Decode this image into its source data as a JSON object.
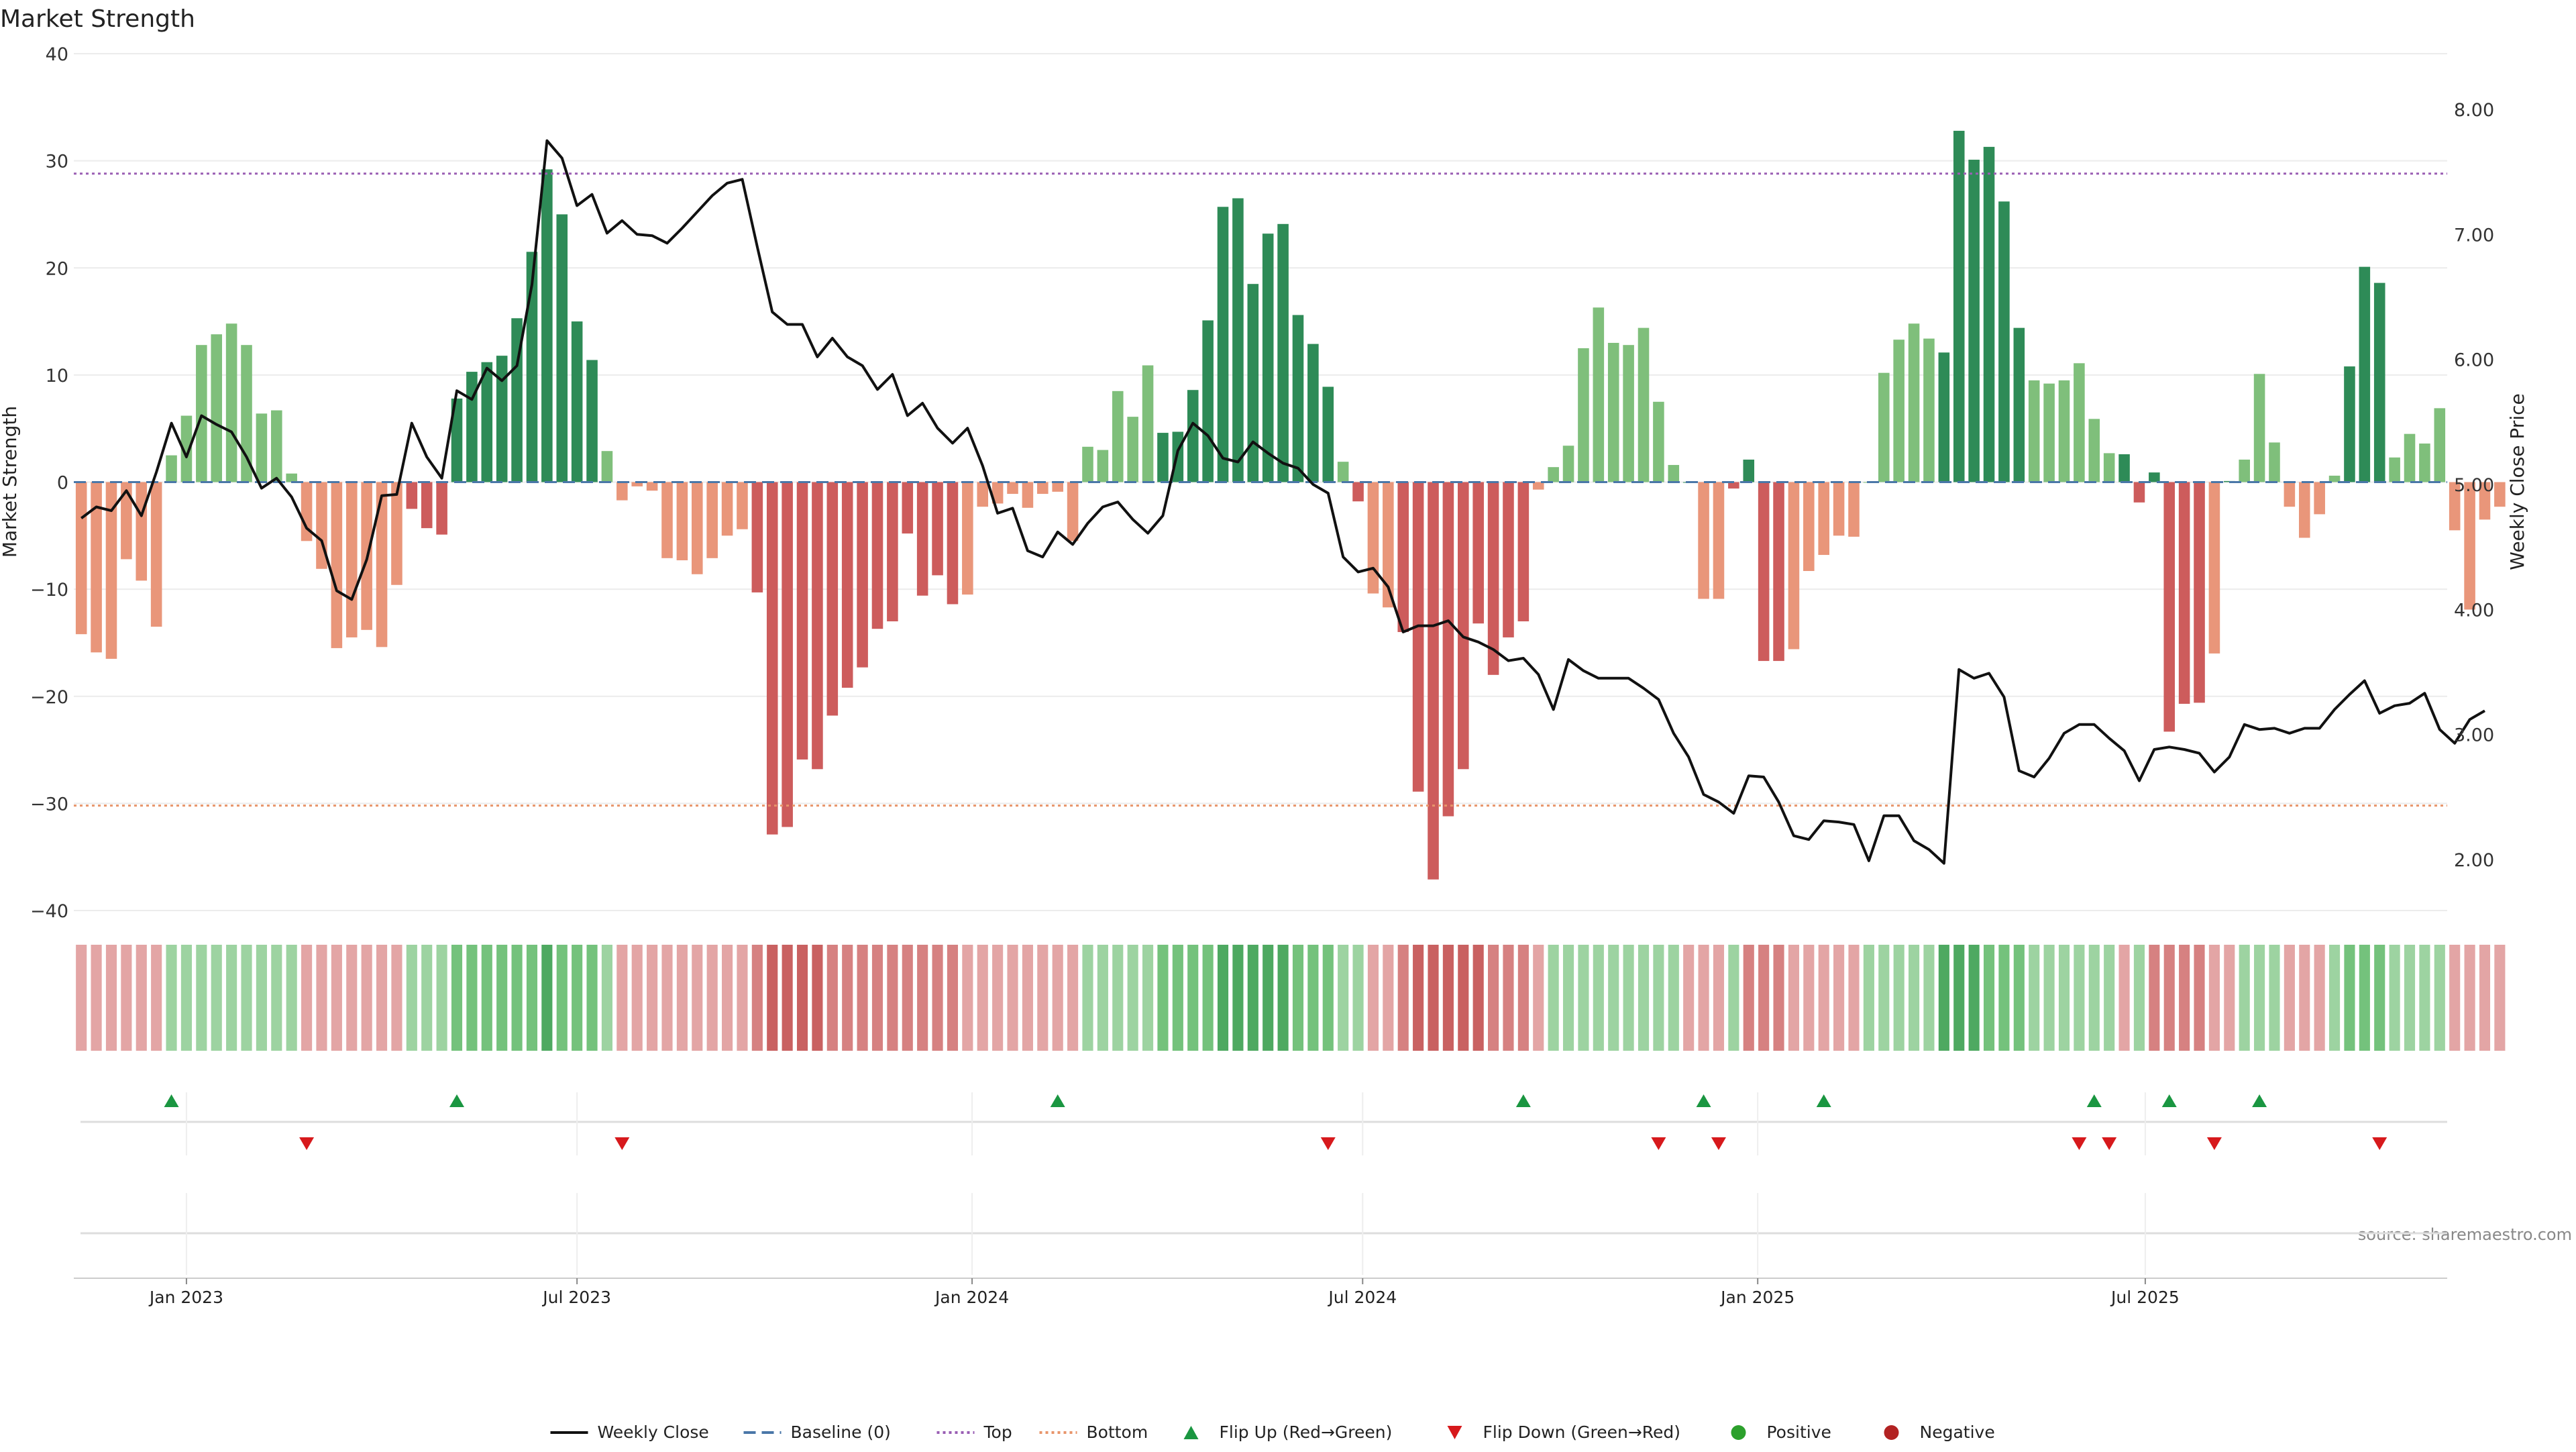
{
  "chart_data": {
    "type": "bar",
    "title": "Market Strength",
    "ylabel_left": "Market Strength",
    "ylabel_right": "Weekly Close Price",
    "ylim_left": [
      -40,
      40
    ],
    "ylim_right": [
      1.5,
      8.3
    ],
    "yticks_left": [
      "40",
      "30",
      "20",
      "10",
      "0",
      "−10",
      "−20",
      "−30",
      "−40"
    ],
    "yticks_left_values": [
      40,
      30,
      20,
      10,
      0,
      -10,
      -20,
      -30,
      -40
    ],
    "yticks_right": [
      "8.00",
      "7.00",
      "6.00",
      "5.00",
      "4.00",
      "3.00",
      "2.00"
    ],
    "yticks_right_values": [
      8,
      7,
      6,
      5,
      4,
      3,
      2
    ],
    "x_ticks": [
      {
        "label": "Jan 2023",
        "week": 7.0
      },
      {
        "label": "Jul 2023",
        "week": 33.0
      },
      {
        "label": "Jan 2024",
        "week": 59.3
      },
      {
        "label": "Jul 2024",
        "week": 85.3
      },
      {
        "label": "Jan 2025",
        "week": 111.6
      },
      {
        "label": "Jul 2025",
        "week": 137.4
      }
    ],
    "x_range": [
      -0.5,
      157.5
    ],
    "top_level": 28.8,
    "bottom_level": -30.2,
    "strength_values": [
      -14.2,
      -15.9,
      -16.5,
      -7.2,
      -9.2,
      -13.5,
      2.5,
      6.2,
      12.8,
      13.8,
      14.8,
      12.8,
      6.4,
      6.7,
      0.8,
      -5.5,
      -8.1,
      -15.5,
      -14.5,
      -13.8,
      -15.4,
      -9.6,
      -2.5,
      -4.3,
      -4.9,
      7.8,
      10.3,
      11.2,
      11.8,
      15.3,
      21.5,
      29.2,
      25.0,
      15.0,
      11.4,
      2.9,
      -1.7,
      -0.4,
      -0.8,
      -7.1,
      -7.3,
      -8.6,
      -7.1,
      -5.0,
      -4.4,
      -10.3,
      -32.9,
      -32.2,
      -25.9,
      -26.8,
      -21.8,
      -19.2,
      -17.3,
      -13.7,
      -13.0,
      -4.8,
      -10.6,
      -8.7,
      -11.4,
      -10.5,
      -2.3,
      -2.0,
      -1.1,
      -2.4,
      -1.1,
      -0.9,
      -5.5,
      3.3,
      3.0,
      8.5,
      6.1,
      10.9,
      4.6,
      4.7,
      8.6,
      15.1,
      25.7,
      26.5,
      18.5,
      23.2,
      24.1,
      15.6,
      12.9,
      8.9,
      1.9,
      -1.8,
      -10.4,
      -11.7,
      -14.0,
      -28.9,
      -37.1,
      -31.2,
      -26.8,
      -13.2,
      -18.0,
      -14.5,
      -13.0,
      -0.7,
      1.4,
      3.4,
      12.5,
      16.3,
      13.0,
      12.8,
      14.4,
      7.5,
      1.6,
      0.0,
      -10.9,
      -10.9,
      -0.6,
      2.1,
      -16.7,
      -16.7,
      -15.6,
      -8.3,
      -6.8,
      -5.0,
      -5.1,
      0.0,
      10.2,
      13.3,
      14.8,
      13.4,
      12.1,
      32.8,
      30.1,
      31.3,
      26.2,
      14.4,
      9.5,
      9.2,
      9.5,
      11.1,
      5.9,
      2.7,
      2.6,
      -1.9,
      0.9,
      -23.3,
      -20.7,
      -20.6,
      -16.0,
      0.1,
      2.1,
      10.1,
      3.7,
      -2.3,
      -5.2,
      -3.0,
      0.6,
      10.8,
      20.1,
      18.6,
      2.3,
      4.5,
      3.6,
      6.9,
      -4.5,
      -11.9,
      -3.5,
      -2.3
    ],
    "shade_levels": [
      -1,
      -1,
      -1,
      -1,
      -1,
      -1,
      1,
      1,
      1,
      1,
      1,
      1,
      1,
      1,
      1,
      -1,
      -1,
      -1,
      -1,
      -1,
      -1,
      -1,
      1,
      1,
      1,
      2,
      2,
      2,
      2,
      2,
      2,
      3,
      2,
      2,
      2,
      1,
      -1,
      -1,
      -1,
      -1,
      -1,
      -1,
      -1,
      -1,
      -1,
      -2,
      -3,
      -3,
      -3,
      -3,
      -2,
      -2,
      -2,
      -2,
      -2,
      -2,
      -2,
      -2,
      -2,
      -1,
      -1,
      -1,
      -1,
      -1,
      -1,
      -1,
      -1,
      1,
      1,
      1,
      1,
      1,
      2,
      2,
      2,
      2,
      3,
      3,
      3,
      3,
      3,
      2,
      2,
      2,
      1,
      1,
      -1,
      -1,
      -2,
      -3,
      -3,
      -3,
      -3,
      -3,
      -2,
      -2,
      -2,
      -1,
      1,
      1,
      1,
      1,
      1,
      1,
      1,
      1,
      1,
      -1,
      -1,
      -1,
      1,
      -2,
      -2,
      -2,
      -1,
      -1,
      -1,
      -1,
      -1,
      1,
      1,
      1,
      1,
      1,
      3,
      3,
      3,
      2,
      2,
      2,
      1,
      1,
      1,
      1,
      1,
      1,
      -1,
      1,
      -2,
      -2,
      -2,
      -2,
      -1,
      -1,
      1,
      1,
      1,
      -1,
      -1,
      -1,
      1,
      2,
      2,
      2,
      1,
      1,
      1,
      1,
      -1,
      -1,
      -1,
      -1
    ],
    "close_values": [
      4.73,
      4.82,
      4.79,
      4.95,
      4.75,
      5.1,
      5.49,
      5.22,
      5.55,
      5.48,
      5.42,
      5.22,
      4.97,
      5.05,
      4.9,
      4.65,
      4.55,
      4.15,
      4.08,
      4.4,
      4.91,
      4.92,
      5.49,
      5.22,
      5.05,
      5.75,
      5.68,
      5.93,
      5.83,
      5.95,
      6.6,
      7.75,
      7.61,
      7.23,
      7.32,
      7.01,
      7.11,
      7.0,
      6.99,
      6.93,
      7.05,
      7.18,
      7.31,
      7.41,
      7.44,
      6.9,
      6.38,
      6.28,
      6.28,
      6.02,
      6.17,
      6.02,
      5.95,
      5.76,
      5.88,
      5.55,
      5.65,
      5.45,
      5.33,
      5.45,
      5.15,
      4.77,
      4.81,
      4.47,
      4.42,
      4.62,
      4.52,
      4.69,
      4.82,
      4.86,
      4.72,
      4.61,
      4.75,
      5.27,
      5.49,
      5.39,
      5.21,
      5.18,
      5.34,
      5.25,
      5.17,
      5.13,
      5.0,
      4.93,
      4.42,
      4.3,
      4.33,
      4.18,
      3.82,
      3.87,
      3.87,
      3.91,
      3.78,
      3.74,
      3.68,
      3.59,
      3.61,
      3.48,
      3.2,
      3.6,
      3.51,
      3.45,
      3.45,
      3.45,
      3.37,
      3.28,
      3.01,
      2.82,
      2.52,
      2.46,
      2.37,
      2.67,
      2.66,
      2.46,
      2.19,
      2.16,
      2.31,
      2.3,
      2.28,
      1.99,
      2.35,
      2.35,
      2.15,
      2.08,
      1.97,
      3.52,
      3.45,
      3.49,
      3.3,
      2.71,
      2.66,
      2.81,
      3.01,
      3.08,
      3.08,
      2.97,
      2.87,
      2.63,
      2.88,
      2.9,
      2.88,
      2.85,
      2.7,
      2.82,
      3.08,
      3.04,
      3.05,
      3.01,
      3.05,
      3.05,
      3.2,
      3.32,
      3.43,
      3.17,
      3.23,
      3.25,
      3.33,
      3.04,
      2.93,
      3.12,
      3.19
    ],
    "flip_up_weeks": [
      6,
      25,
      65,
      96,
      108,
      116,
      134,
      139,
      145
    ],
    "flip_down_weeks": [
      15,
      36,
      83,
      105,
      109,
      133,
      135,
      142,
      153
    ],
    "legend": [
      {
        "label": "Weekly Close",
        "symbol": "line",
        "color": "#111111"
      },
      {
        "label": "Baseline (0)",
        "symbol": "dashed",
        "color": "#4a77a8"
      },
      {
        "label": "Top",
        "symbol": "dotted",
        "color": "#9a5fb4"
      },
      {
        "label": "Bottom",
        "symbol": "dotted",
        "color": "#e8956b"
      },
      {
        "label": "Flip Up (Red→Green)",
        "symbol": "triangle-up",
        "color": "#1a9641"
      },
      {
        "label": "Flip Down (Green→Red)",
        "symbol": "triangle-down",
        "color": "#d7191c"
      },
      {
        "label": "Positive",
        "symbol": "circle",
        "color": "#2ca02c"
      },
      {
        "label": "Negative",
        "symbol": "circle",
        "color": "#b22222"
      }
    ],
    "legend_position": "bottom-center",
    "source": "source: sharemaestro.com",
    "colors": {
      "green_strong": "#2e8b57",
      "green_light": "#7fbf7b",
      "red_strong": "#cd5c5c",
      "red_light": "#e9967a",
      "heat_green": [
        "#c7e9c9",
        "#9dd3a1",
        "#74c27c",
        "#4ea961"
      ],
      "heat_red": [
        "#f1d0d0",
        "#e3a5a5",
        "#d68181",
        "#c96161"
      ]
    }
  }
}
